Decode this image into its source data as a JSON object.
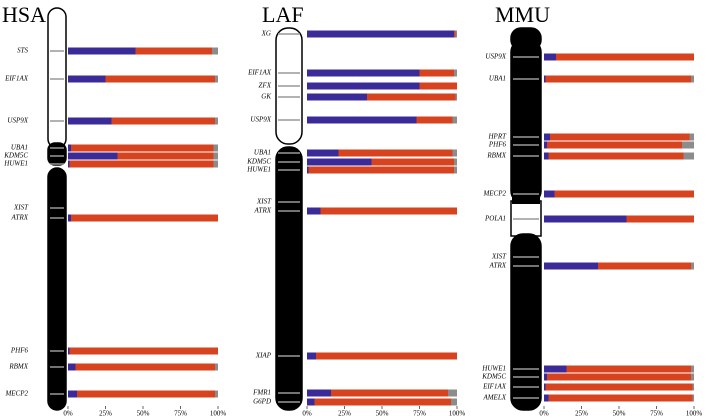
{
  "chart_data": [
    {
      "type": "bar",
      "orientation": "horizontal",
      "stacked": true,
      "title": "HSA",
      "categories": [
        "STS",
        "EIF1AX",
        "USP9X",
        "UBA1",
        "KDM5C",
        "HUWE1",
        "XIST",
        "ATRX",
        "PHF6",
        "RBMX",
        "MECP2"
      ],
      "series": [
        {
          "color": "#3b2b98",
          "values": [
            45,
            25,
            29,
            2,
            33,
            1,
            null,
            2,
            1,
            5,
            6
          ]
        },
        {
          "color": "#d8431f",
          "values": [
            51,
            73,
            69,
            95,
            64,
            96,
            null,
            98,
            99,
            93,
            92
          ]
        },
        {
          "color": "#8c8c8c",
          "values": [
            4,
            2,
            2,
            3,
            3,
            3,
            null,
            0,
            0,
            2,
            2
          ]
        }
      ],
      "xlim": [
        0,
        100
      ],
      "xticks": [
        {
          "value": 0,
          "label": "0%"
        },
        {
          "value": 25,
          "label": "25%"
        },
        {
          "value": 50,
          "label": "50%"
        },
        {
          "value": 75,
          "label": "75%"
        },
        {
          "value": 100,
          "label": "100%"
        }
      ]
    },
    {
      "type": "bar",
      "orientation": "horizontal",
      "stacked": true,
      "title": "LAF",
      "categories": [
        "XG",
        "EIF1AX",
        "ZFX",
        "GK",
        "USP9X",
        "UBA1",
        "KDM5C",
        "HUWE1",
        "XIST",
        "ATRX",
        "XIAP",
        "FMR1",
        "G6PD"
      ],
      "series": [
        {
          "color": "#3b2b98",
          "values": [
            98,
            75,
            75,
            40,
            73,
            21,
            43,
            1,
            null,
            9,
            6,
            16,
            5
          ]
        },
        {
          "color": "#d8431f",
          "values": [
            1,
            23,
            25,
            59,
            24,
            76,
            55,
            97,
            null,
            91,
            94,
            78,
            91
          ]
        },
        {
          "color": "#8c8c8c",
          "values": [
            1,
            2,
            0,
            1,
            3,
            3,
            2,
            2,
            null,
            0,
            0,
            6,
            4
          ]
        }
      ],
      "xlim": [
        0,
        100
      ],
      "xticks": [
        {
          "value": 0,
          "label": "0%"
        },
        {
          "value": 25,
          "label": "25%"
        },
        {
          "value": 50,
          "label": "50%"
        },
        {
          "value": 75,
          "label": "75%"
        },
        {
          "value": 100,
          "label": "100%"
        }
      ]
    },
    {
      "type": "bar",
      "orientation": "horizontal",
      "stacked": true,
      "title": "MMU",
      "categories": [
        "USP9X",
        "UBA1",
        "HPRT",
        "PHF6",
        "RBMX",
        "MECP2",
        "POLA1",
        "XIST",
        "ATRX",
        "HUWE1",
        "KDM5C",
        "EIF1AX",
        "AMELX"
      ],
      "series": [
        {
          "color": "#3b2b98",
          "values": [
            8,
            1,
            4,
            2,
            3,
            7,
            55,
            null,
            36,
            15,
            2,
            1,
            3
          ]
        },
        {
          "color": "#d8431f",
          "values": [
            92,
            97,
            93,
            90,
            90,
            93,
            45,
            null,
            62,
            83,
            96,
            98,
            96
          ]
        },
        {
          "color": "#8c8c8c",
          "values": [
            0,
            2,
            3,
            8,
            7,
            0,
            0,
            null,
            2,
            2,
            2,
            1,
            1
          ]
        }
      ],
      "xlim": [
        0,
        100
      ],
      "xticks": [
        {
          "value": 0,
          "label": "0%"
        },
        {
          "value": 25,
          "label": "25%"
        },
        {
          "value": 50,
          "label": "50%"
        },
        {
          "value": 75,
          "label": "75%"
        },
        {
          "value": 100,
          "label": "100%"
        }
      ]
    }
  ]
}
